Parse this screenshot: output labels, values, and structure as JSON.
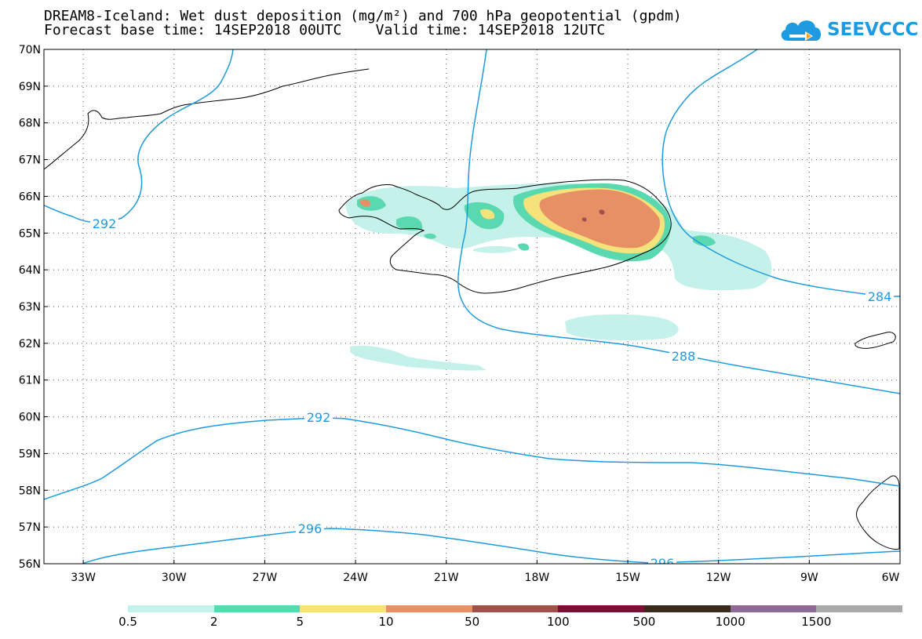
{
  "title": {
    "line1": "DREAM8-Iceland: Wet dust deposition (mg/m²) and 700 hPa geopotential (gpdm)",
    "line2": "Forecast base time: 14SEP2018 00UTC    Valid time: 14SEP2018 12UTC"
  },
  "logo": {
    "text": "SEEVCCC",
    "color": "#1e9be0"
  },
  "map": {
    "lat_range": [
      56,
      70
    ],
    "lon_range": [
      -34.3,
      -6
    ],
    "lat_ticks": [
      "70N",
      "69N",
      "68N",
      "67N",
      "66N",
      "65N",
      "64N",
      "63N",
      "62N",
      "61N",
      "60N",
      "59N",
      "58N",
      "57N",
      "56N"
    ],
    "lon_ticks": [
      "33W",
      "30W",
      "27W",
      "24W",
      "21W",
      "18W",
      "15W",
      "12W",
      "9W",
      "6W"
    ],
    "contour_color": "#1e9be0",
    "contour_labels": [
      "292",
      "284",
      "288",
      "292",
      "296",
      "296"
    ]
  },
  "colorbar": {
    "colors": [
      "#c4f1ea",
      "#5ad8b0",
      "#f5e27a",
      "#e79066",
      "#a0514a",
      "#7b0f33",
      "#3a2a1c",
      "#8f6a97",
      "#a9a9a9"
    ],
    "labels": [
      "0.5",
      "2",
      "5",
      "10",
      "50",
      "100",
      "500",
      "1000",
      "1500"
    ]
  }
}
